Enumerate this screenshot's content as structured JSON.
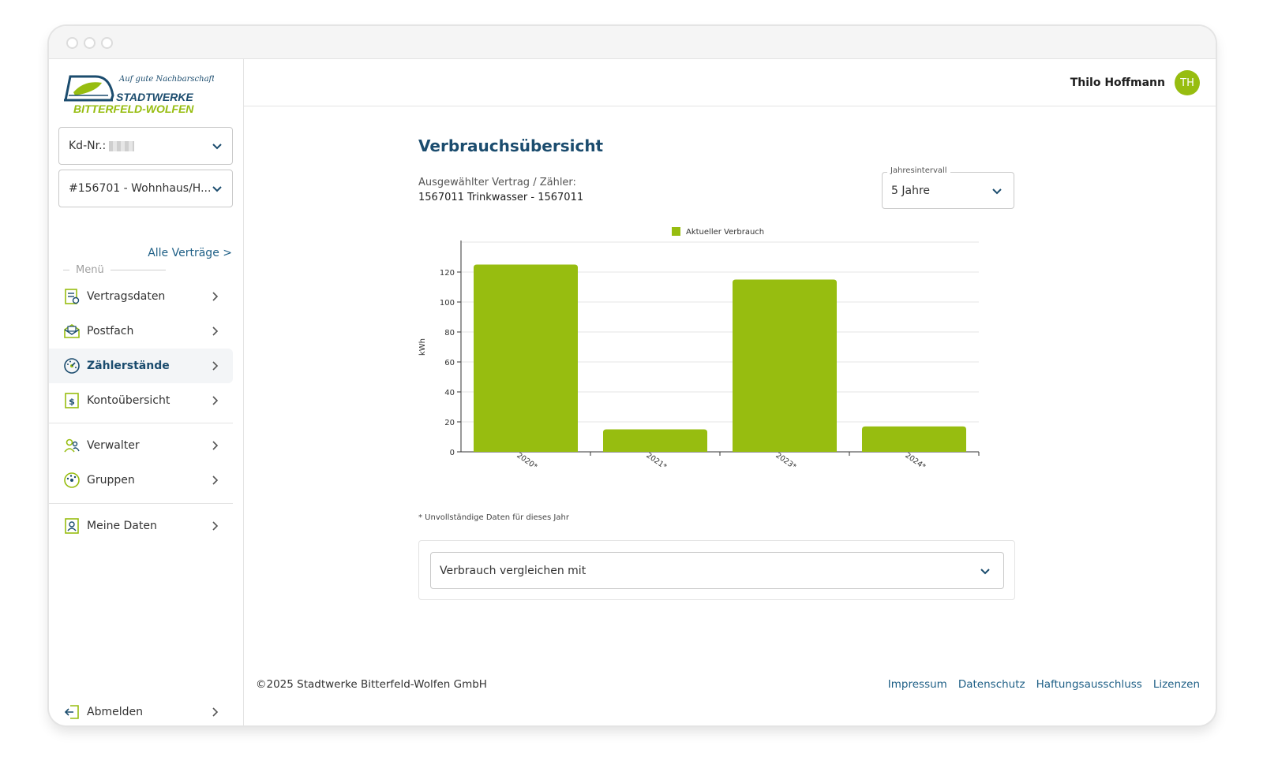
{
  "brand": {
    "slogan": "Auf gute Nachbarschaft!",
    "name_line1": "STADTWERKE",
    "name_line2": "BITTERFELD-WOLFEN",
    "primary_color": "#1b4c6e",
    "accent_color": "#97bd10"
  },
  "sidebar": {
    "customer_select": {
      "label": "Kd-Nr.:"
    },
    "contract_select": {
      "value": "#156701 - Wohnhaus/H..."
    },
    "all_contracts_link": "Alle Verträge >",
    "menu_label": "Menü",
    "items": [
      {
        "label": "Vertragsdaten",
        "icon": "contract-icon"
      },
      {
        "label": "Postfach",
        "icon": "mailbox-icon"
      },
      {
        "label": "Zählerstände",
        "icon": "meter-icon",
        "active": true
      },
      {
        "label": "Kontoübersicht",
        "icon": "account-icon"
      },
      {
        "label": "Verwalter",
        "icon": "users-icon"
      },
      {
        "label": "Gruppen",
        "icon": "groups-icon"
      },
      {
        "label": "Meine Daten",
        "icon": "profile-icon"
      }
    ],
    "logout": {
      "label": "Abmelden",
      "icon": "logout-icon"
    }
  },
  "header": {
    "user_name": "Thilo Hoffmann",
    "avatar_initials": "TH"
  },
  "main": {
    "title": "Verbrauchsübersicht",
    "selected_contract_label": "Ausgewählter Vertrag / Zähler:",
    "selected_contract_value": "1567011 Trinkwasser - 1567011",
    "interval": {
      "label": "Jahresintervall",
      "value": "5 Jahre"
    },
    "footnote": "* Unvollständige Daten für dieses Jahr",
    "compare_select": {
      "value": "Verbrauch vergleichen mit"
    }
  },
  "chart_data": {
    "type": "bar",
    "categories": [
      "2020*",
      "2021*",
      "2023*",
      "2024*"
    ],
    "series": [
      {
        "name": "Aktueller Verbrauch",
        "values": [
          125,
          15,
          115,
          17
        ],
        "color": "#97bd10"
      }
    ],
    "xlabel": "",
    "ylabel": "kWh",
    "ylim": [
      0,
      140
    ],
    "yticks": [
      0,
      20,
      40,
      60,
      80,
      100,
      120
    ],
    "legend_position": "top-center",
    "grid": true
  },
  "footer": {
    "copyright": "©2025 Stadtwerke Bitterfeld-Wolfen GmbH",
    "links": [
      "Impressum",
      "Datenschutz",
      "Haftungsausschluss",
      "Lizenzen"
    ]
  }
}
